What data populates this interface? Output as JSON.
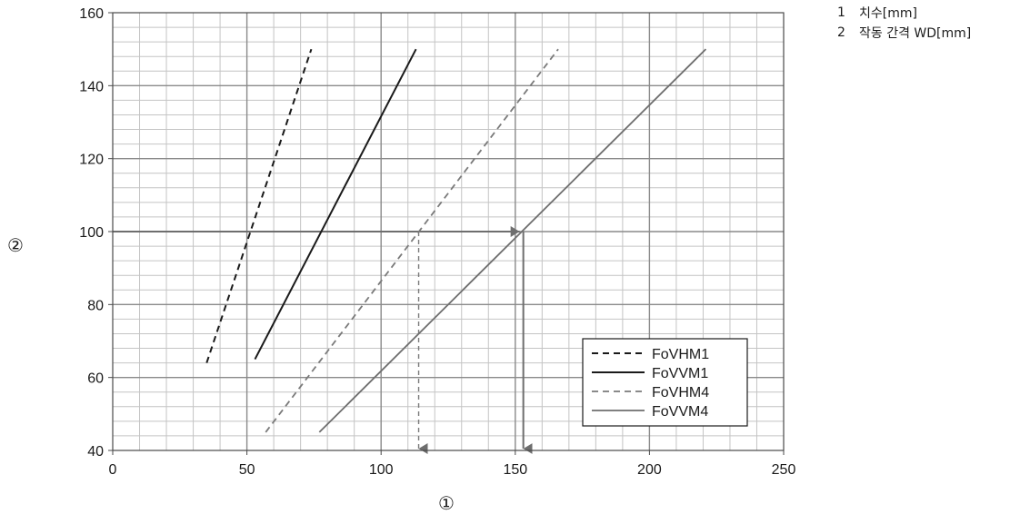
{
  "key": [
    {
      "num": "1",
      "text": "치수[mm]"
    },
    {
      "num": "2",
      "text": "작동 간격 WD[mm]"
    }
  ],
  "chart_data": {
    "type": "line",
    "xlabel": "①",
    "ylabel": "②",
    "xlim": [
      0,
      250
    ],
    "ylim": [
      40,
      160
    ],
    "x_ticks": [
      0,
      50,
      100,
      150,
      200,
      250
    ],
    "y_ticks": [
      40,
      60,
      80,
      100,
      120,
      140,
      160
    ],
    "x_minor_step": 10,
    "y_minor_step": 4,
    "grid": true,
    "legend_position": "bottom-right",
    "series": [
      {
        "name": "FoVHM1",
        "color": "#1a1a1a",
        "dash": "dashed",
        "x": [
          35,
          74
        ],
        "y": [
          64,
          150
        ]
      },
      {
        "name": "FoVVM1",
        "color": "#1a1a1a",
        "dash": "solid",
        "x": [
          53,
          113
        ],
        "y": [
          65,
          150
        ]
      },
      {
        "name": "FoVHM4",
        "color": "#7a7a7a",
        "dash": "dashed",
        "x": [
          57,
          166
        ],
        "y": [
          45,
          150
        ]
      },
      {
        "name": "FoVVM4",
        "color": "#6e6e6e",
        "dash": "solid",
        "x": [
          77,
          221
        ],
        "y": [
          45,
          150
        ]
      }
    ],
    "annotations": [
      {
        "from_series": "FoVHM4",
        "x": 114,
        "y_from": 100,
        "y_to": 40,
        "dash": "dashed",
        "color": "#7a7a7a"
      },
      {
        "from_series": "FoVVM4",
        "x": 153,
        "y_from": 100,
        "y_to": 40,
        "dash": "solid",
        "color": "#6e6e6e"
      }
    ],
    "reference_line": {
      "y": 100,
      "x_from": 0,
      "x_to": 153
    }
  }
}
